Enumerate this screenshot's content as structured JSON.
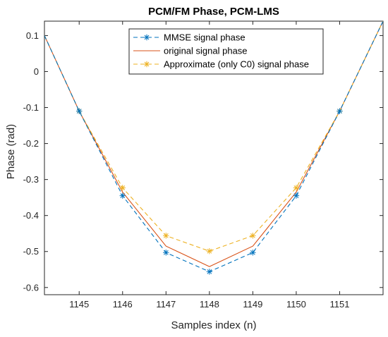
{
  "chart_data": {
    "type": "line",
    "title": "PCM/FM Phase, PCM-LMS",
    "xlabel": "Samples index (n)",
    "ylabel": "Phase (rad)",
    "xlim": [
      1144.2,
      1152
    ],
    "ylim": [
      -0.62,
      0.14
    ],
    "xticks": [
      1145,
      1146,
      1147,
      1148,
      1149,
      1150,
      1151
    ],
    "yticks": [
      0.1,
      0,
      -0.1,
      -0.2,
      -0.3,
      -0.4,
      -0.5,
      -0.6
    ],
    "ytick_labels": [
      "0.1",
      "0",
      "-0.1",
      "-0.2",
      "-0.3",
      "-0.4",
      "-0.5",
      "-0.6"
    ],
    "grid": false,
    "legend_position": "top-center",
    "series": [
      {
        "name": "MMSE signal phase",
        "color": "#0072BD",
        "style": "dashed",
        "marker": "asterisk",
        "x": [
          1144.2,
          1145,
          1146,
          1147,
          1148,
          1149,
          1150,
          1151,
          1152
        ],
        "y": [
          0.1,
          -0.11,
          -0.345,
          -0.503,
          -0.556,
          -0.503,
          -0.345,
          -0.11,
          0.14
        ]
      },
      {
        "name": "original signal phase",
        "color": "#D95319",
        "style": "solid",
        "marker": "none",
        "x": [
          1144.2,
          1145,
          1146,
          1147,
          1148,
          1149,
          1150,
          1151,
          1152
        ],
        "y": [
          0.1,
          -0.11,
          -0.335,
          -0.485,
          -0.542,
          -0.485,
          -0.335,
          -0.11,
          0.14
        ]
      },
      {
        "name": "Approximate (only C0) signal phase",
        "color": "#EDB120",
        "style": "dashed",
        "marker": "asterisk",
        "x": [
          1144.2,
          1145,
          1146,
          1147,
          1148,
          1149,
          1150,
          1151,
          1152
        ],
        "y": [
          0.1,
          -0.11,
          -0.323,
          -0.456,
          -0.499,
          -0.456,
          -0.323,
          -0.11,
          0.14
        ]
      }
    ]
  }
}
